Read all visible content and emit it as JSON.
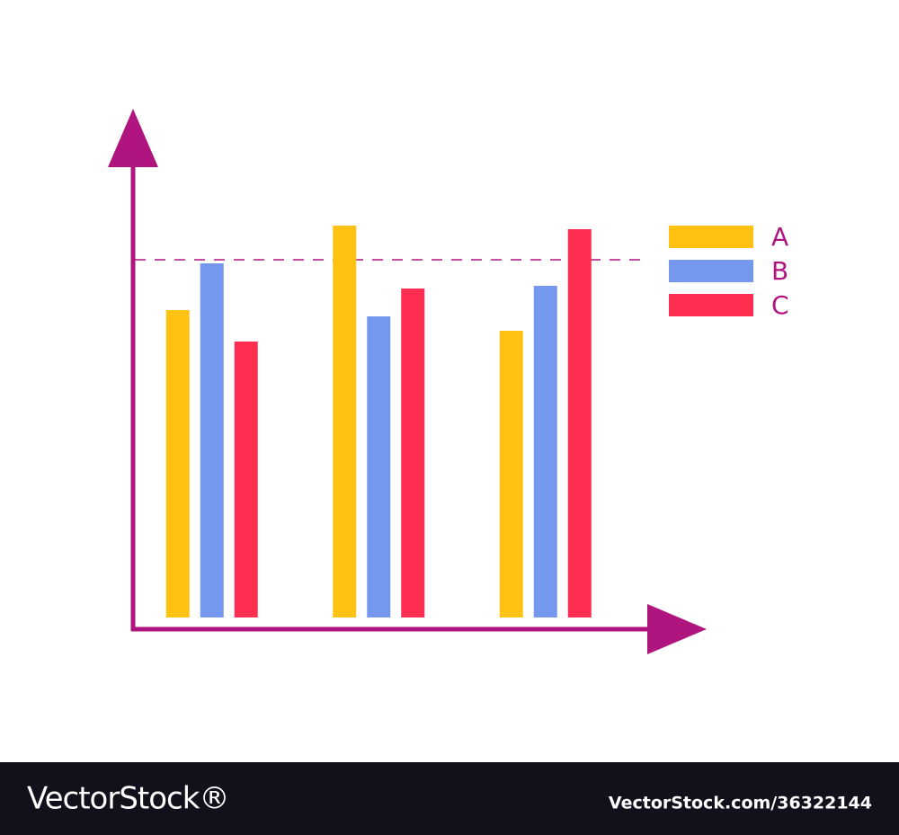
{
  "chart_data": {
    "type": "bar",
    "categories": [
      null,
      null,
      null
    ],
    "series": [
      {
        "name": "A",
        "color": "#ffc112",
        "values": [
          68.4,
          87.2,
          63.8
        ]
      },
      {
        "name": "B",
        "color": "#7598ef",
        "values": [
          78.8,
          67,
          73.8
        ]
      },
      {
        "name": "C",
        "color": "#ff2e51",
        "values": [
          61.4,
          73.2,
          86.4
        ]
      }
    ],
    "ylim": [
      0,
      100
    ],
    "reference_line": 79.6,
    "axis_color": "#b0157f",
    "legend": "right"
  },
  "footer": {
    "brand": "VectorStock®",
    "id": "VectorStock.com/36322144"
  }
}
